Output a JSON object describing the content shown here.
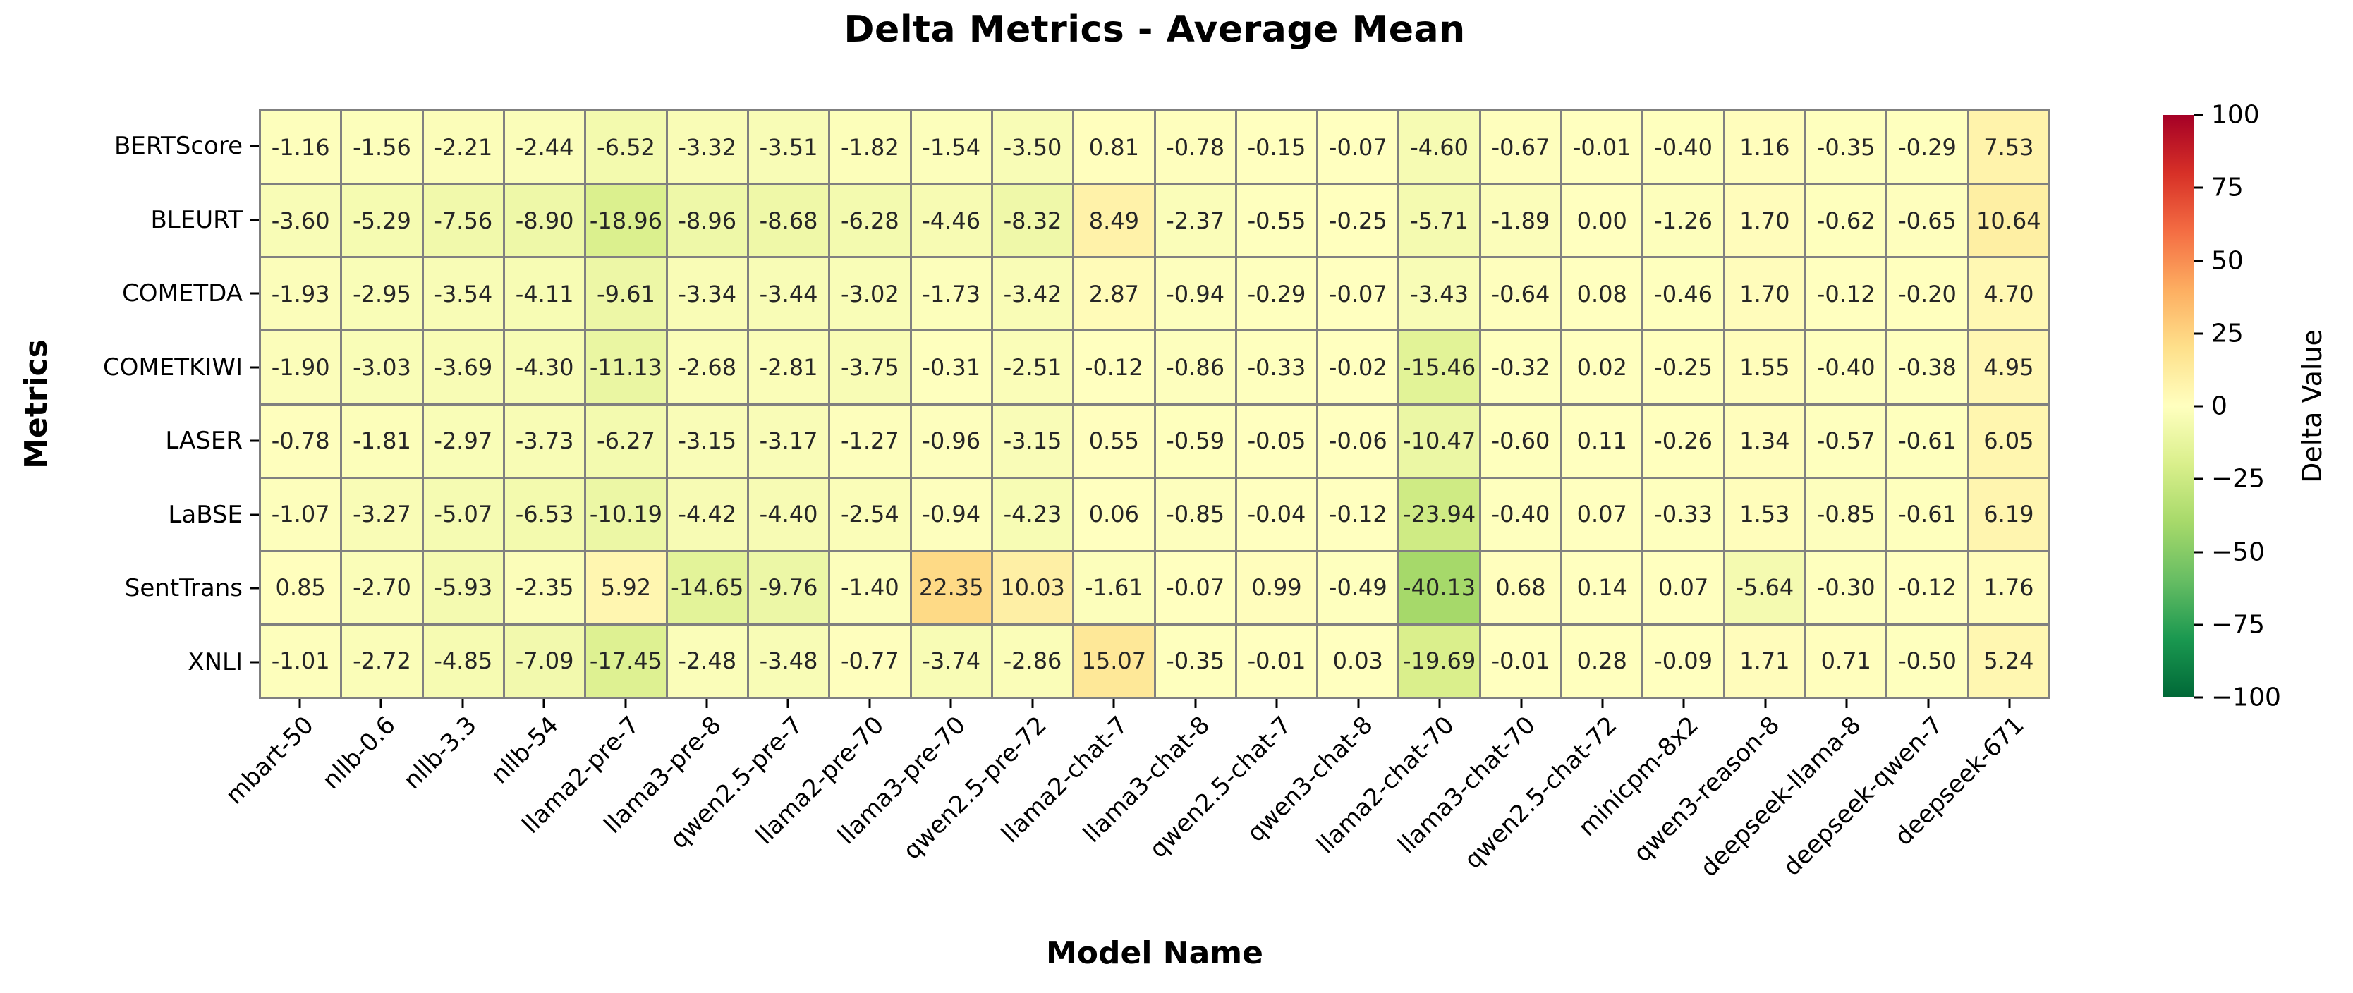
{
  "chart_data": {
    "type": "heatmap",
    "title": "Delta Metrics - Average Mean",
    "xlabel": "Model Name",
    "ylabel": "Metrics",
    "rows": [
      "BERTScore",
      "BLEURT",
      "COMETDA",
      "COMETKIWI",
      "LASER",
      "LaBSE",
      "SentTrans",
      "XNLI"
    ],
    "columns": [
      "mbart-50",
      "nllb-0.6",
      "nllb-3.3",
      "nllb-54",
      "llama2-pre-7",
      "llama3-pre-8",
      "qwen2.5-pre-7",
      "llama2-pre-70",
      "llama3-pre-70",
      "qwen2.5-pre-72",
      "llama2-chat-7",
      "llama3-chat-8",
      "qwen2.5-chat-7",
      "qwen3-chat-8",
      "llama2-chat-70",
      "llama3-chat-70",
      "qwen2.5-chat-72",
      "minicpm-8x2",
      "qwen3-reason-8",
      "deepseek-llama-8",
      "deepseek-qwen-7",
      "deepseek-671"
    ],
    "values": [
      [
        -1.16,
        -1.56,
        -2.21,
        -2.44,
        -6.52,
        -3.32,
        -3.51,
        -1.82,
        -1.54,
        -3.5,
        0.81,
        -0.78,
        -0.15,
        -0.07,
        -4.6,
        -0.67,
        -0.01,
        -0.4,
        1.16,
        -0.35,
        -0.29,
        7.53
      ],
      [
        -3.6,
        -5.29,
        -7.56,
        -8.9,
        -18.96,
        -8.96,
        -8.68,
        -6.28,
        -4.46,
        -8.32,
        8.49,
        -2.37,
        -0.55,
        -0.25,
        -5.71,
        -1.89,
        0.0,
        -1.26,
        1.7,
        -0.62,
        -0.65,
        10.64
      ],
      [
        -1.93,
        -2.95,
        -3.54,
        -4.11,
        -9.61,
        -3.34,
        -3.44,
        -3.02,
        -1.73,
        -3.42,
        2.87,
        -0.94,
        -0.29,
        -0.07,
        -3.43,
        -0.64,
        0.08,
        -0.46,
        1.7,
        -0.12,
        -0.2,
        4.7
      ],
      [
        -1.9,
        -3.03,
        -3.69,
        -4.3,
        -11.13,
        -2.68,
        -2.81,
        -3.75,
        -0.31,
        -2.51,
        -0.12,
        -0.86,
        -0.33,
        -0.02,
        -15.46,
        -0.32,
        0.02,
        -0.25,
        1.55,
        -0.4,
        -0.38,
        4.95
      ],
      [
        -0.78,
        -1.81,
        -2.97,
        -3.73,
        -6.27,
        -3.15,
        -3.17,
        -1.27,
        -0.96,
        -3.15,
        0.55,
        -0.59,
        -0.05,
        -0.06,
        -10.47,
        -0.6,
        0.11,
        -0.26,
        1.34,
        -0.57,
        -0.61,
        6.05
      ],
      [
        -1.07,
        -3.27,
        -5.07,
        -6.53,
        -10.19,
        -4.42,
        -4.4,
        -2.54,
        -0.94,
        -4.23,
        0.06,
        -0.85,
        -0.04,
        -0.12,
        -23.94,
        -0.4,
        0.07,
        -0.33,
        1.53,
        -0.85,
        -0.61,
        6.19
      ],
      [
        0.85,
        -2.7,
        -5.93,
        -2.35,
        5.92,
        -14.65,
        -9.76,
        -1.4,
        22.35,
        10.03,
        -1.61,
        -0.07,
        0.99,
        -0.49,
        -40.13,
        0.68,
        0.14,
        0.07,
        -5.64,
        -0.3,
        -0.12,
        1.76
      ],
      [
        -1.01,
        -2.72,
        -4.85,
        -7.09,
        -17.45,
        -2.48,
        -3.48,
        -0.77,
        -3.74,
        -2.86,
        15.07,
        -0.35,
        -0.01,
        0.03,
        -19.69,
        -0.01,
        0.28,
        -0.09,
        1.71,
        0.71,
        -0.5,
        5.24
      ]
    ],
    "value_format_decimals": 2,
    "vmin": -100,
    "vmax": 100,
    "grid": "cell-borders",
    "legend_position": "right",
    "colorbar": {
      "label": "Delta Value",
      "ticks": [
        100,
        75,
        50,
        25,
        0,
        -25,
        -50,
        -75,
        -100
      ],
      "tick_labels": [
        "100",
        "75",
        "50",
        "25",
        "0",
        "−25",
        "−50",
        "−75",
        "−100"
      ]
    },
    "colormap": {
      "name": "RdYlGn_r",
      "stops_low_to_high": [
        "#006837",
        "#1a9850",
        "#66bd63",
        "#a6d96a",
        "#d9ef8b",
        "#ffffbf",
        "#fee08b",
        "#fdae61",
        "#f46d43",
        "#d73027",
        "#a50026"
      ]
    },
    "colors": {
      "grid_line": "#808080",
      "annotation_text": "#262626",
      "axis_text": "#000000",
      "background": "#ffffff"
    }
  }
}
